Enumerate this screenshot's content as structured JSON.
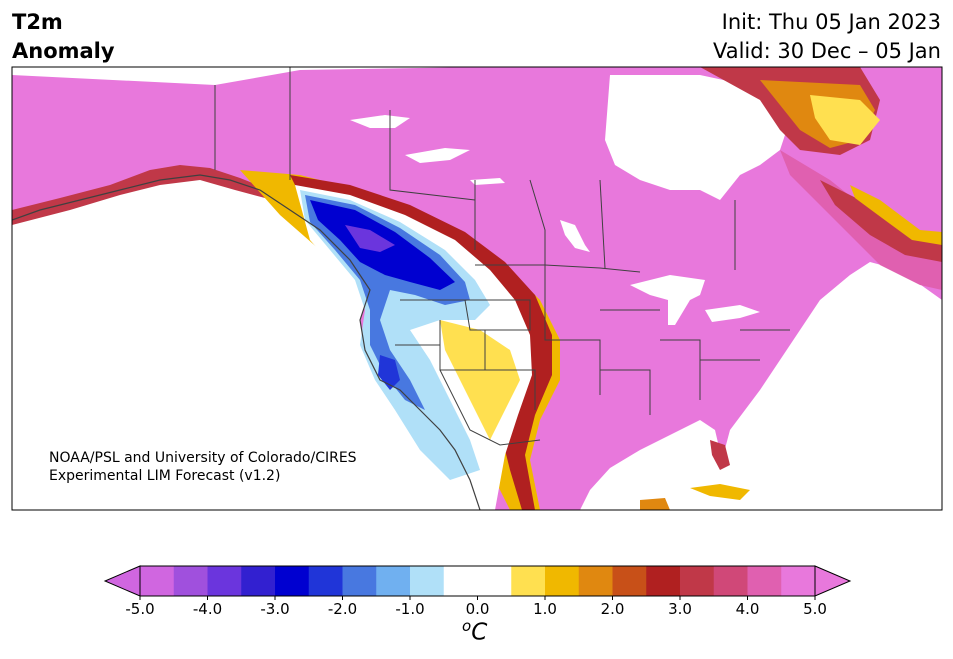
{
  "title": {
    "variable": "T2m",
    "subtitle": "Anomaly",
    "init": "Init: Thu 05 Jan 2023",
    "valid": "Valid: 30 Dec – 05 Jan"
  },
  "credit": {
    "line1": "NOAA/PSL and University of Colorado/CIRES",
    "line2": "Experimental LIM Forecast (v1.2)"
  },
  "colorbar": {
    "unit": "oC",
    "tick_labels": [
      "-5.0",
      "-4.0",
      "-3.0",
      "-2.0",
      "-1.0",
      "0.0",
      "1.0",
      "2.0",
      "3.0",
      "4.0",
      "5.0"
    ],
    "tick_values": [
      -5,
      -4,
      -3,
      -2,
      -1,
      0,
      1,
      2,
      3,
      4,
      5
    ],
    "range": [
      -5,
      5
    ],
    "extend": "both",
    "colors": [
      "#d066e0",
      "#a050dd",
      "#6b35dd",
      "#3220d0",
      "#0000d0",
      "#2035d8",
      "#4878e0",
      "#70b0f0",
      "#b0e0f8",
      "#ffffff",
      "#ffffff",
      "#ffe050",
      "#f0b800",
      "#e08810",
      "#c85018",
      "#b02020",
      "#c03848",
      "#d04878",
      "#e060b0",
      "#e878dc"
    ]
  },
  "map": {
    "region": "North America",
    "background_color": "#ffffff",
    "land_base_color": "#e878dc",
    "border_color": "#404040"
  }
}
